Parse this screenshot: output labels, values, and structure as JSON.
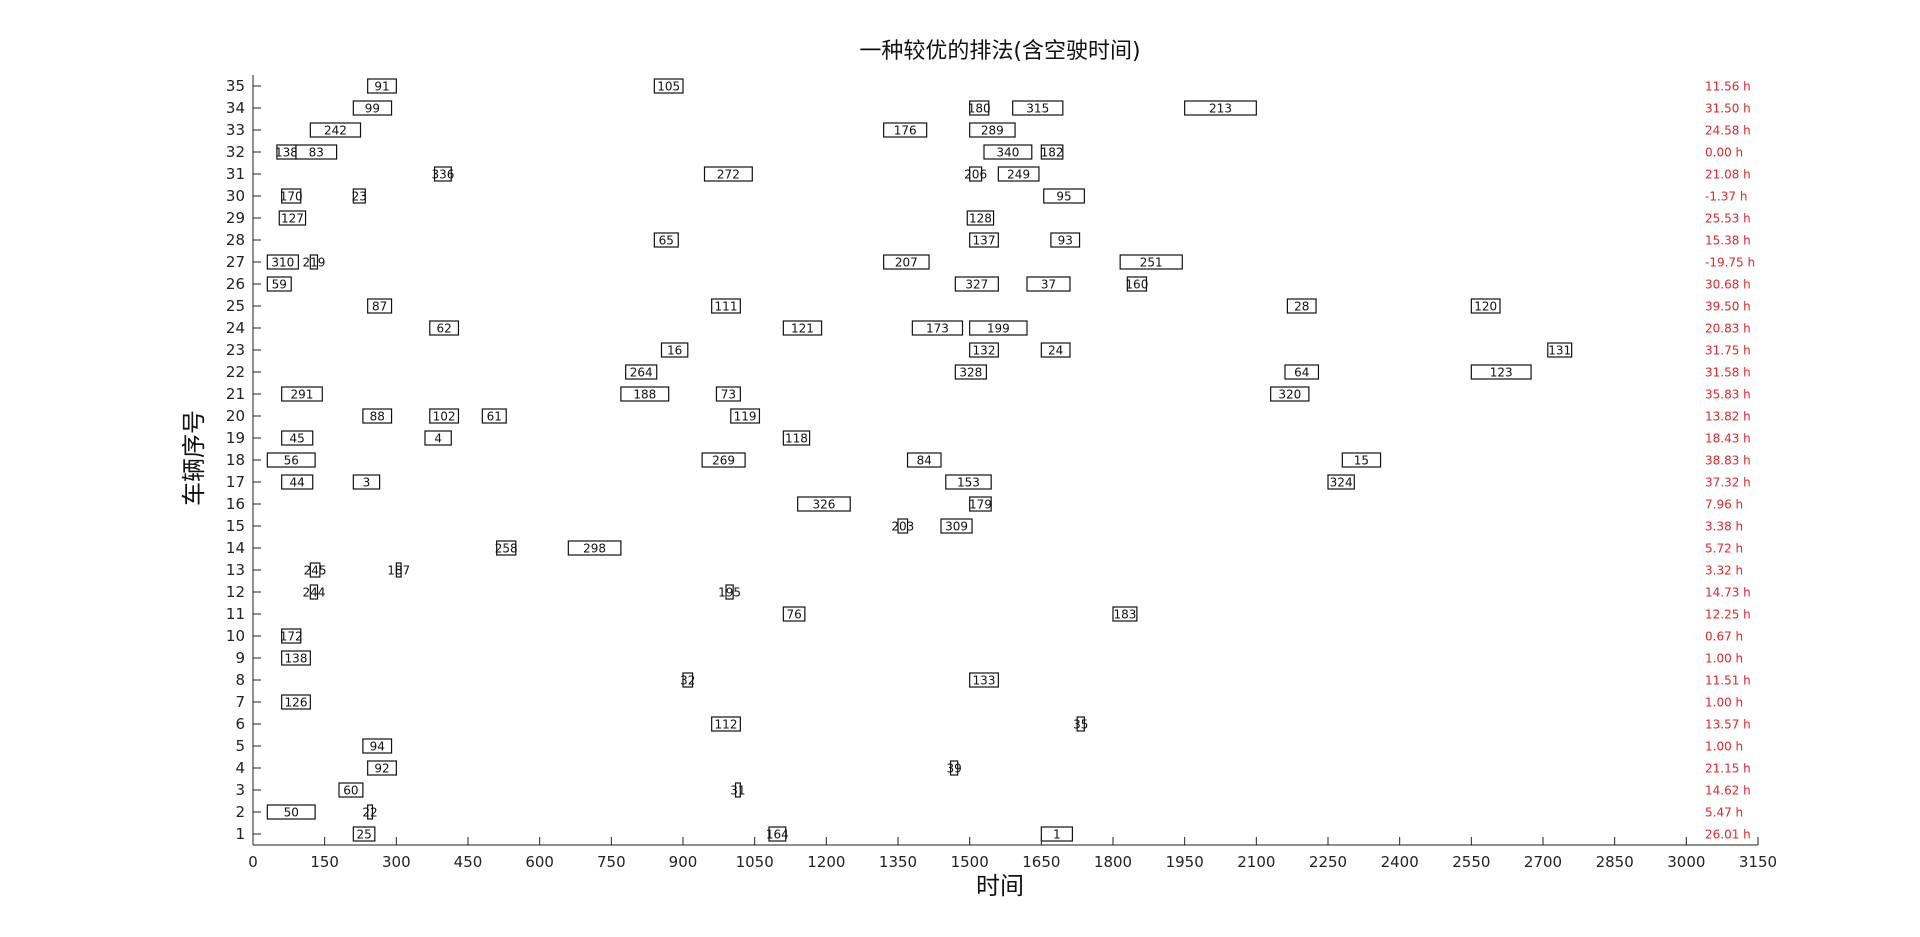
{
  "chart_data": {
    "type": "gantt",
    "title": "一种较优的排法(含空驶时间)",
    "xlabel": "时间",
    "ylabel": "车辆序号",
    "xlim": [
      0,
      3150
    ],
    "ylim": [
      1,
      35
    ],
    "xticks": [
      0,
      150,
      300,
      450,
      600,
      750,
      900,
      1050,
      1200,
      1350,
      1500,
      1650,
      1800,
      1950,
      2100,
      2250,
      2400,
      2550,
      2700,
      2850,
      3000,
      3150
    ],
    "yticks": [
      1,
      2,
      3,
      4,
      5,
      6,
      7,
      8,
      9,
      10,
      11,
      12,
      13,
      14,
      15,
      16,
      17,
      18,
      19,
      20,
      21,
      22,
      23,
      24,
      25,
      26,
      27,
      28,
      29,
      30,
      31,
      32,
      33,
      34,
      35
    ],
    "colors": {
      "box": "#111111",
      "hours": "#e0262b"
    },
    "vehicle_hours": [
      {
        "vehicle": 35,
        "label": "11.56 h"
      },
      {
        "vehicle": 34,
        "label": "31.50 h"
      },
      {
        "vehicle": 33,
        "label": "24.58 h"
      },
      {
        "vehicle": 32,
        "label": "0.00 h"
      },
      {
        "vehicle": 31,
        "label": "21.08 h"
      },
      {
        "vehicle": 30,
        "label": "-1.37 h"
      },
      {
        "vehicle": 29,
        "label": "25.53 h"
      },
      {
        "vehicle": 28,
        "label": "15.38 h"
      },
      {
        "vehicle": 27,
        "label": "-19.75 h"
      },
      {
        "vehicle": 26,
        "label": "30.68 h"
      },
      {
        "vehicle": 25,
        "label": "39.50 h"
      },
      {
        "vehicle": 24,
        "label": "20.83 h"
      },
      {
        "vehicle": 23,
        "label": "31.75 h"
      },
      {
        "vehicle": 22,
        "label": "31.58 h"
      },
      {
        "vehicle": 21,
        "label": "35.83 h"
      },
      {
        "vehicle": 20,
        "label": "13.82 h"
      },
      {
        "vehicle": 19,
        "label": "18.43 h"
      },
      {
        "vehicle": 18,
        "label": "38.83 h"
      },
      {
        "vehicle": 17,
        "label": "37.32 h"
      },
      {
        "vehicle": 16,
        "label": "7.96 h"
      },
      {
        "vehicle": 15,
        "label": "3.38 h"
      },
      {
        "vehicle": 14,
        "label": "5.72 h"
      },
      {
        "vehicle": 13,
        "label": "3.32 h"
      },
      {
        "vehicle": 12,
        "label": "14.73 h"
      },
      {
        "vehicle": 11,
        "label": "12.25 h"
      },
      {
        "vehicle": 10,
        "label": "0.67 h"
      },
      {
        "vehicle": 9,
        "label": "1.00 h"
      },
      {
        "vehicle": 8,
        "label": "11.51 h"
      },
      {
        "vehicle": 7,
        "label": "1.00 h"
      },
      {
        "vehicle": 6,
        "label": "13.57 h"
      },
      {
        "vehicle": 5,
        "label": "1.00 h"
      },
      {
        "vehicle": 4,
        "label": "21.15 h"
      },
      {
        "vehicle": 3,
        "label": "14.62 h"
      },
      {
        "vehicle": 2,
        "label": "5.47 h"
      },
      {
        "vehicle": 1,
        "label": "26.01 h"
      }
    ],
    "tasks": [
      {
        "vehicle": 35,
        "id": "91",
        "start": 240,
        "end": 300
      },
      {
        "vehicle": 35,
        "id": "105",
        "start": 840,
        "end": 900
      },
      {
        "vehicle": 34,
        "id": "99",
        "start": 210,
        "end": 290
      },
      {
        "vehicle": 34,
        "id": "180",
        "start": 1500,
        "end": 1540
      },
      {
        "vehicle": 34,
        "id": "315",
        "start": 1590,
        "end": 1695
      },
      {
        "vehicle": 34,
        "id": "213",
        "start": 1950,
        "end": 2100
      },
      {
        "vehicle": 33,
        "id": "242",
        "start": 120,
        "end": 225
      },
      {
        "vehicle": 33,
        "id": "176",
        "start": 1320,
        "end": 1410
      },
      {
        "vehicle": 33,
        "id": "289",
        "start": 1500,
        "end": 1595
      },
      {
        "vehicle": 32,
        "id": "138",
        "start": 50,
        "end": 90
      },
      {
        "vehicle": 32,
        "id": "83",
        "start": 90,
        "end": 175
      },
      {
        "vehicle": 32,
        "id": "340",
        "start": 1530,
        "end": 1630
      },
      {
        "vehicle": 32,
        "id": "182",
        "start": 1650,
        "end": 1695
      },
      {
        "vehicle": 31,
        "id": "336",
        "start": 380,
        "end": 415
      },
      {
        "vehicle": 31,
        "id": "272",
        "start": 945,
        "end": 1045
      },
      {
        "vehicle": 31,
        "id": "206",
        "start": 1500,
        "end": 1525
      },
      {
        "vehicle": 31,
        "id": "249",
        "start": 1560,
        "end": 1645
      },
      {
        "vehicle": 30,
        "id": "170",
        "start": 60,
        "end": 100
      },
      {
        "vehicle": 30,
        "id": "23",
        "start": 210,
        "end": 235
      },
      {
        "vehicle": 30,
        "id": "95",
        "start": 1655,
        "end": 1740
      },
      {
        "vehicle": 29,
        "id": "127",
        "start": 55,
        "end": 110
      },
      {
        "vehicle": 29,
        "id": "128",
        "start": 1495,
        "end": 1550
      },
      {
        "vehicle": 28,
        "id": "65",
        "start": 840,
        "end": 890
      },
      {
        "vehicle": 28,
        "id": "137",
        "start": 1500,
        "end": 1560
      },
      {
        "vehicle": 28,
        "id": "93",
        "start": 1670,
        "end": 1730
      },
      {
        "vehicle": 27,
        "id": "310",
        "start": 30,
        "end": 95
      },
      {
        "vehicle": 27,
        "id": "219",
        "start": 120,
        "end": 135
      },
      {
        "vehicle": 27,
        "id": "207",
        "start": 1320,
        "end": 1415
      },
      {
        "vehicle": 27,
        "id": "251",
        "start": 1815,
        "end": 1945
      },
      {
        "vehicle": 26,
        "id": "59",
        "start": 30,
        "end": 80
      },
      {
        "vehicle": 26,
        "id": "327",
        "start": 1470,
        "end": 1560
      },
      {
        "vehicle": 26,
        "id": "37",
        "start": 1620,
        "end": 1710
      },
      {
        "vehicle": 26,
        "id": "160",
        "start": 1830,
        "end": 1870
      },
      {
        "vehicle": 25,
        "id": "87",
        "start": 240,
        "end": 290
      },
      {
        "vehicle": 25,
        "id": "111",
        "start": 960,
        "end": 1020
      },
      {
        "vehicle": 25,
        "id": "28",
        "start": 2165,
        "end": 2225
      },
      {
        "vehicle": 25,
        "id": "120",
        "start": 2550,
        "end": 2610
      },
      {
        "vehicle": 24,
        "id": "62",
        "start": 370,
        "end": 430
      },
      {
        "vehicle": 24,
        "id": "121",
        "start": 1110,
        "end": 1190
      },
      {
        "vehicle": 24,
        "id": "173",
        "start": 1380,
        "end": 1485
      },
      {
        "vehicle": 24,
        "id": "199",
        "start": 1500,
        "end": 1620
      },
      {
        "vehicle": 23,
        "id": "16",
        "start": 855,
        "end": 910
      },
      {
        "vehicle": 23,
        "id": "132",
        "start": 1500,
        "end": 1560
      },
      {
        "vehicle": 23,
        "id": "24",
        "start": 1650,
        "end": 1710
      },
      {
        "vehicle": 23,
        "id": "131",
        "start": 2710,
        "end": 2760
      },
      {
        "vehicle": 22,
        "id": "264",
        "start": 780,
        "end": 845
      },
      {
        "vehicle": 22,
        "id": "328",
        "start": 1470,
        "end": 1535
      },
      {
        "vehicle": 22,
        "id": "64",
        "start": 2160,
        "end": 2230
      },
      {
        "vehicle": 22,
        "id": "123",
        "start": 2550,
        "end": 2675
      },
      {
        "vehicle": 21,
        "id": "291",
        "start": 60,
        "end": 145
      },
      {
        "vehicle": 21,
        "id": "188",
        "start": 770,
        "end": 870
      },
      {
        "vehicle": 21,
        "id": "73",
        "start": 970,
        "end": 1020
      },
      {
        "vehicle": 21,
        "id": "320",
        "start": 2130,
        "end": 2210
      },
      {
        "vehicle": 20,
        "id": "88",
        "start": 230,
        "end": 290
      },
      {
        "vehicle": 20,
        "id": "102",
        "start": 370,
        "end": 430
      },
      {
        "vehicle": 20,
        "id": "61",
        "start": 480,
        "end": 530
      },
      {
        "vehicle": 20,
        "id": "119",
        "start": 1000,
        "end": 1060
      },
      {
        "vehicle": 19,
        "id": "45",
        "start": 60,
        "end": 125
      },
      {
        "vehicle": 19,
        "id": "4",
        "start": 360,
        "end": 415
      },
      {
        "vehicle": 19,
        "id": "118",
        "start": 1110,
        "end": 1165
      },
      {
        "vehicle": 18,
        "id": "56",
        "start": 30,
        "end": 130
      },
      {
        "vehicle": 18,
        "id": "269",
        "start": 940,
        "end": 1030
      },
      {
        "vehicle": 18,
        "id": "84",
        "start": 1370,
        "end": 1440
      },
      {
        "vehicle": 18,
        "id": "15",
        "start": 2280,
        "end": 2360
      },
      {
        "vehicle": 17,
        "id": "44",
        "start": 60,
        "end": 125
      },
      {
        "vehicle": 17,
        "id": "3",
        "start": 210,
        "end": 265
      },
      {
        "vehicle": 17,
        "id": "153",
        "start": 1450,
        "end": 1545
      },
      {
        "vehicle": 17,
        "id": "324",
        "start": 2250,
        "end": 2305
      },
      {
        "vehicle": 16,
        "id": "326",
        "start": 1140,
        "end": 1250
      },
      {
        "vehicle": 16,
        "id": "179",
        "start": 1500,
        "end": 1545
      },
      {
        "vehicle": 15,
        "id": "203",
        "start": 1350,
        "end": 1370
      },
      {
        "vehicle": 15,
        "id": "309",
        "start": 1440,
        "end": 1505
      },
      {
        "vehicle": 14,
        "id": "258",
        "start": 510,
        "end": 550
      },
      {
        "vehicle": 14,
        "id": "298",
        "start": 660,
        "end": 770
      },
      {
        "vehicle": 13,
        "id": "245",
        "start": 120,
        "end": 140
      },
      {
        "vehicle": 13,
        "id": "187",
        "start": 300,
        "end": 310
      },
      {
        "vehicle": 12,
        "id": "244",
        "start": 120,
        "end": 135
      },
      {
        "vehicle": 12,
        "id": "195",
        "start": 990,
        "end": 1005
      },
      {
        "vehicle": 11,
        "id": "76",
        "start": 1110,
        "end": 1155
      },
      {
        "vehicle": 11,
        "id": "183",
        "start": 1800,
        "end": 1850
      },
      {
        "vehicle": 10,
        "id": "172",
        "start": 60,
        "end": 100
      },
      {
        "vehicle": 9,
        "id": "138",
        "start": 60,
        "end": 120
      },
      {
        "vehicle": 8,
        "id": "32",
        "start": 900,
        "end": 920
      },
      {
        "vehicle": 8,
        "id": "133",
        "start": 1500,
        "end": 1560
      },
      {
        "vehicle": 7,
        "id": "126",
        "start": 60,
        "end": 120
      },
      {
        "vehicle": 6,
        "id": "112",
        "start": 960,
        "end": 1020
      },
      {
        "vehicle": 6,
        "id": "35",
        "start": 1725,
        "end": 1740
      },
      {
        "vehicle": 5,
        "id": "94",
        "start": 230,
        "end": 290
      },
      {
        "vehicle": 4,
        "id": "92",
        "start": 240,
        "end": 300
      },
      {
        "vehicle": 4,
        "id": "39",
        "start": 1460,
        "end": 1475
      },
      {
        "vehicle": 3,
        "id": "60",
        "start": 180,
        "end": 230
      },
      {
        "vehicle": 3,
        "id": "31",
        "start": 1010,
        "end": 1020
      },
      {
        "vehicle": 2,
        "id": "50",
        "start": 30,
        "end": 130
      },
      {
        "vehicle": 2,
        "id": "22",
        "start": 240,
        "end": 250
      },
      {
        "vehicle": 1,
        "id": "25",
        "start": 210,
        "end": 255
      },
      {
        "vehicle": 1,
        "id": "164",
        "start": 1080,
        "end": 1115
      },
      {
        "vehicle": 1,
        "id": "1",
        "start": 1650,
        "end": 1715
      }
    ]
  }
}
